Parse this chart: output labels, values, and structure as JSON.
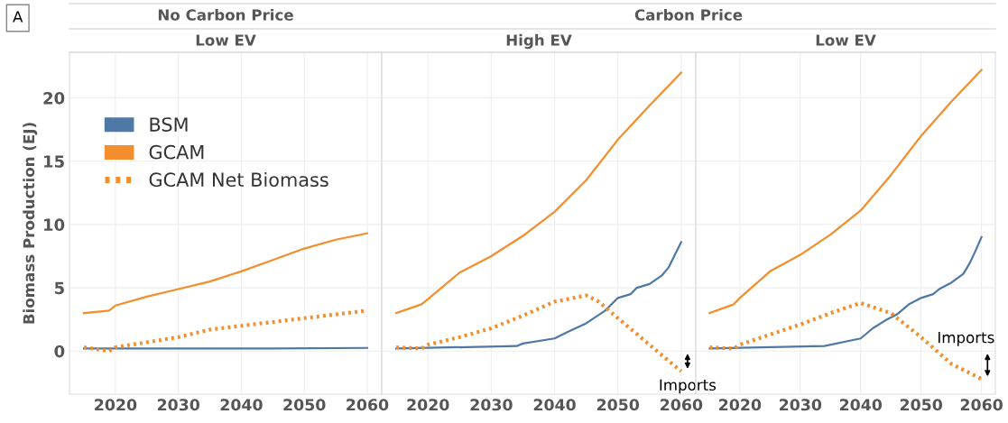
{
  "chart_data": [
    {
      "type": "line",
      "title": "No Carbon Price",
      "subtitle": "Low EV",
      "ylabel": "Biomass Production (EJ)",
      "xlim": [
        2012.7,
        2062.3
      ],
      "ylim": [
        -3.4,
        23.6
      ],
      "xticks": [
        2020,
        2030,
        2040,
        2050,
        2060
      ],
      "yticks": [
        0,
        5,
        10,
        15,
        20
      ],
      "grid": true,
      "legend": "top left",
      "annotations": [
        "A"
      ],
      "series": [
        {
          "name": "BSM",
          "color": "#4e79a7",
          "x": [
            2015,
            2030,
            2045,
            2060
          ],
          "values": [
            0.2,
            0.2,
            0.2,
            0.25
          ]
        },
        {
          "name": "GCAM",
          "color": "#f28e2b",
          "x": [
            2015,
            2019,
            2020,
            2025,
            2030,
            2035,
            2040,
            2045,
            2050,
            2055,
            2060
          ],
          "values": [
            3.0,
            3.2,
            3.6,
            4.3,
            4.9,
            5.5,
            6.3,
            7.2,
            8.1,
            8.8,
            9.3
          ]
        },
        {
          "name": "GCAM Net Biomass",
          "color": "#f28e2b",
          "line_style": "dotted",
          "x": [
            2015,
            2019,
            2020,
            2025,
            2030,
            2035,
            2040,
            2045,
            2050,
            2055,
            2060
          ],
          "values": [
            0.3,
            0.0,
            0.3,
            0.7,
            1.1,
            1.7,
            2.0,
            2.3,
            2.6,
            2.9,
            3.2
          ]
        }
      ]
    },
    {
      "type": "line",
      "title": "Carbon Price",
      "subtitle": "High EV",
      "xlim": [
        2012.7,
        2062.3
      ],
      "ylim": [
        -3.4,
        23.6
      ],
      "xticks": [
        2020,
        2030,
        2040,
        2050,
        2060
      ],
      "yticks": [
        0,
        5,
        10,
        15,
        20
      ],
      "grid": true,
      "tick_labels": "x",
      "annotations": [
        "Imports"
      ],
      "series": [
        {
          "color": "#4e79a7",
          "x": [
            2015,
            2034,
            2035,
            2040,
            2042,
            2045,
            2048,
            2050,
            2052,
            2053,
            2055,
            2057,
            2058,
            2059,
            2060
          ],
          "values": [
            0.2,
            0.4,
            0.6,
            1.0,
            1.5,
            2.2,
            3.2,
            4.2,
            4.5,
            5.0,
            5.3,
            6.0,
            6.6,
            7.6,
            8.6
          ]
        },
        {
          "color": "#f28e2b",
          "x": [
            2015,
            2019,
            2020,
            2025,
            2030,
            2035,
            2040,
            2045,
            2050,
            2055,
            2060
          ],
          "values": [
            3.0,
            3.7,
            4.1,
            6.2,
            7.5,
            9.1,
            11.0,
            13.5,
            16.7,
            19.4,
            22.0
          ]
        },
        {
          "color": "#f28e2b",
          "line_style": "dotted",
          "x": [
            2015,
            2019,
            2020,
            2025,
            2030,
            2035,
            2040,
            2045,
            2047,
            2050,
            2055,
            2060
          ],
          "values": [
            0.3,
            0.2,
            0.5,
            1.1,
            1.8,
            2.8,
            3.9,
            4.4,
            3.9,
            2.6,
            0.5,
            -1.6
          ]
        }
      ]
    },
    {
      "type": "line",
      "subtitle": "Low EV",
      "xlim": [
        2012.7,
        2062.3
      ],
      "ylim": [
        -3.4,
        23.6
      ],
      "xticks": [
        2020,
        2030,
        2040,
        2050,
        2060
      ],
      "yticks": [
        0,
        5,
        10,
        15,
        20
      ],
      "grid": true,
      "tick_labels": "x",
      "annotations": [
        "Imports"
      ],
      "series": [
        {
          "color": "#4e79a7",
          "x": [
            2015,
            2034,
            2040,
            2042,
            2044,
            2046,
            2048,
            2050,
            2052,
            2053,
            2055,
            2057,
            2058,
            2059,
            2060
          ],
          "values": [
            0.2,
            0.4,
            1.0,
            1.8,
            2.4,
            2.9,
            3.7,
            4.2,
            4.5,
            4.9,
            5.4,
            6.1,
            6.9,
            7.9,
            9.0
          ]
        },
        {
          "color": "#f28e2b",
          "x": [
            2015,
            2019,
            2020,
            2025,
            2030,
            2035,
            2040,
            2045,
            2050,
            2055,
            2060
          ],
          "values": [
            3.0,
            3.7,
            4.2,
            6.3,
            7.6,
            9.2,
            11.1,
            13.9,
            17.0,
            19.7,
            22.2
          ]
        },
        {
          "color": "#f28e2b",
          "line_style": "dotted",
          "x": [
            2015,
            2019,
            2020,
            2025,
            2030,
            2035,
            2040,
            2045,
            2050,
            2055,
            2060
          ],
          "values": [
            0.3,
            0.2,
            0.5,
            1.3,
            2.1,
            3.0,
            3.8,
            3.0,
            1.1,
            -1.0,
            -2.2
          ]
        }
      ]
    }
  ]
}
